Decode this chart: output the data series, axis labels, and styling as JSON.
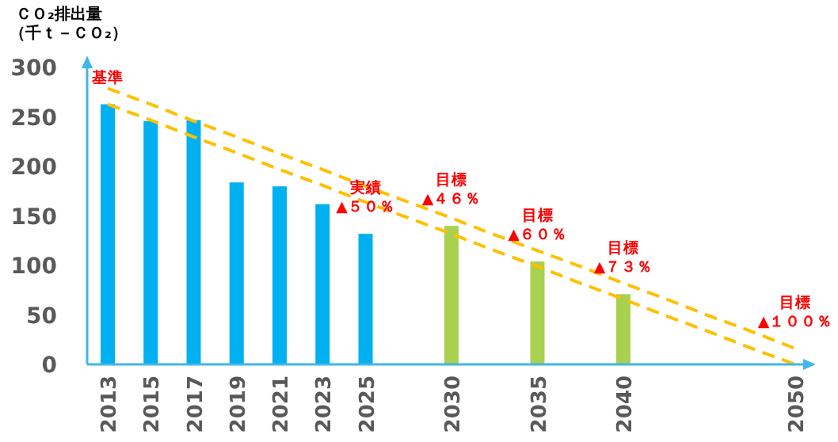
{
  "chart_data": {
    "type": "bar",
    "ylabel": "ＣＯ₂排出量（千ｔ－ＣＯ₂）",
    "categories": [
      "2013",
      "2015",
      "2017",
      "2019",
      "2021",
      "2023",
      "2025",
      null,
      "2030",
      null,
      "2035",
      null,
      "2040",
      null,
      null,
      null,
      "2050"
    ],
    "series": [
      {
        "values": [
          263,
          246,
          247,
          184,
          180,
          162,
          132,
          null,
          140,
          null,
          104,
          null,
          71,
          null,
          null,
          null,
          null
        ],
        "colors": [
          "#00b0f0",
          "#00b0f0",
          "#00b0f0",
          "#00b0f0",
          "#00b0f0",
          "#00b0f0",
          "#00b0f0",
          null,
          "#a9d04f",
          null,
          "#a9d04f",
          null,
          "#a9d04f",
          null,
          null,
          null,
          null
        ]
      },
      {
        "type": "line",
        "values": [
          263,
          247,
          230,
          214,
          197,
          181,
          164,
          148,
          132,
          115,
          99,
          82,
          66,
          49,
          33,
          16,
          0
        ],
        "color": "#ffc000",
        "line_style": "dashed"
      },
      {
        "type": "line",
        "values": [
          279,
          263,
          246,
          230,
          213,
          197,
          180,
          164,
          148,
          131,
          115,
          99,
          82,
          66,
          49,
          33,
          16
        ],
        "color": "#ffc000",
        "line_style": "dashed"
      }
    ],
    "ylim": [
      0,
      309
    ],
    "yticks": [
      0,
      50,
      100,
      150,
      200,
      250,
      300
    ],
    "annotations": [
      {
        "text": "基準",
        "x": "2013",
        "y": 263
      },
      {
        "text": "実績\n▲５０％",
        "x": "2025",
        "y": 132
      },
      {
        "text": "目標\n▲４６％",
        "x": "2030",
        "y": 140
      },
      {
        "text": "目標\n▲６０％",
        "x": "2035",
        "y": 104
      },
      {
        "text": "目標\n▲７３％",
        "x": "2040",
        "y": 71
      },
      {
        "text": "目標\n▲１００％",
        "x": "2050",
        "y": 16
      }
    ]
  }
}
